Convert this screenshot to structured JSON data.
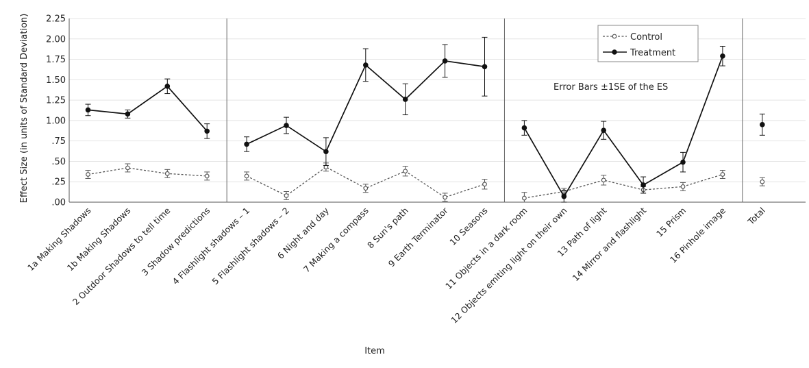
{
  "chart_data": {
    "type": "line",
    "title": "",
    "xlabel": "Item",
    "ylabel": "Effect Size (in units of Standard Deviation)",
    "ylim": [
      0,
      2.25
    ],
    "y_ticks": [
      ".00",
      ".25",
      ".50",
      ".75",
      "1.00",
      "1.25",
      "1.50",
      "1.75",
      "2.00",
      "2.25"
    ],
    "grid": true,
    "legend_position": "top-right",
    "annotation": "Error Bars ±1SE of the ES",
    "categories": [
      "1a Making Shadows",
      "1b Making Shadows",
      "2 Outdoor Shadows to tell time",
      "3 Shadow predictions",
      "4 Flashlight shadows – 1",
      "5 Flashlight shadows – 2",
      "6 Night and day",
      "7 Making a compass",
      "8 Sun's path",
      "9 Earth Terminator",
      "10 Seasons",
      "11 Objects in a dark room",
      "12 Objects emiting light on their own",
      "13 Path of light",
      "14 Mirror and flashlight",
      "15 Prism",
      "16 Pinhole image",
      "Total"
    ],
    "panels": [
      [
        0,
        3
      ],
      [
        4,
        10
      ],
      [
        11,
        16
      ],
      [
        17,
        17
      ]
    ],
    "series": [
      {
        "name": "Control",
        "style": "dashed",
        "marker": "open-circle",
        "color": "#555555",
        "values": [
          0.34,
          0.42,
          0.35,
          0.32,
          0.32,
          0.08,
          0.43,
          0.17,
          0.38,
          0.06,
          0.22,
          0.05,
          0.13,
          0.27,
          0.15,
          0.19,
          0.34,
          0.25
        ],
        "errors": [
          0.05,
          0.05,
          0.05,
          0.05,
          0.05,
          0.05,
          0.05,
          0.05,
          0.06,
          0.05,
          0.06,
          0.07,
          0.04,
          0.06,
          0.04,
          0.05,
          0.05,
          0.05
        ]
      },
      {
        "name": "Treatment",
        "style": "solid",
        "marker": "filled-circle",
        "color": "#111111",
        "values": [
          1.13,
          1.08,
          1.42,
          0.87,
          0.71,
          0.94,
          0.62,
          1.68,
          1.26,
          1.73,
          1.66,
          0.91,
          0.07,
          0.88,
          0.21,
          0.49,
          1.79,
          0.95
        ],
        "errors": [
          0.07,
          0.05,
          0.09,
          0.09,
          0.09,
          0.1,
          0.17,
          0.2,
          0.19,
          0.2,
          0.36,
          0.09,
          0.07,
          0.11,
          0.1,
          0.12,
          0.12,
          0.13
        ]
      }
    ]
  }
}
